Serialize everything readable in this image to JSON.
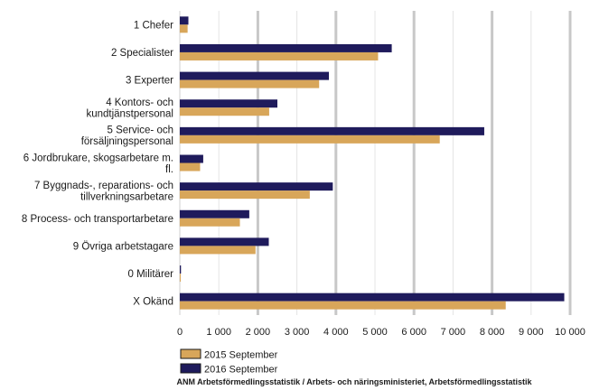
{
  "chart_data": {
    "type": "bar",
    "orientation": "horizontal",
    "categories": [
      [
        "1 Chefer"
      ],
      [
        "2 Specialister"
      ],
      [
        "3 Experter"
      ],
      [
        "4 Kontors- och",
        "kundtjänstpersonal"
      ],
      [
        "5 Service- och",
        "försäljningspersonal"
      ],
      [
        "6 Jordbrukare, skogsarbetare m.",
        "fl."
      ],
      [
        "7 Byggnads-, reparations- och",
        "tillverkningsarbetare"
      ],
      [
        "8 Process- och transportarbetare"
      ],
      [
        "9 Övriga arbetstagare"
      ],
      [
        "0 Militärer"
      ],
      [
        "X Okänd"
      ]
    ],
    "series": [
      {
        "name": "2016 September",
        "color": "#1f1b5c",
        "values": [
          220,
          5430,
          3820,
          2500,
          7800,
          600,
          3920,
          1780,
          2280,
          30,
          9850
        ]
      },
      {
        "name": "2015 September",
        "color": "#d8a65a",
        "values": [
          200,
          5080,
          3570,
          2290,
          6660,
          520,
          3330,
          1540,
          1940,
          20,
          8350
        ]
      }
    ],
    "xlim": [
      0,
      10000
    ],
    "xticks": [
      0,
      1000,
      2000,
      3000,
      4000,
      5000,
      6000,
      7000,
      8000,
      9000,
      10000
    ],
    "xtick_labels": [
      "0",
      "1 000",
      "2 000",
      "3 000",
      "4 000",
      "5 000",
      "6 000",
      "7 000",
      "8 000",
      "9 000",
      "10 000"
    ],
    "grid": "vertical",
    "legend": [
      {
        "name": "2015 September",
        "color": "#d8a65a"
      },
      {
        "name": "2016 September",
        "color": "#1f1b5c"
      }
    ],
    "legend_position": "bottom-left",
    "source": "ANM Arbetsförmedlingsstatistik / Arbets- och näringsministeriet, Arbetsförmedlingsstatistik"
  }
}
